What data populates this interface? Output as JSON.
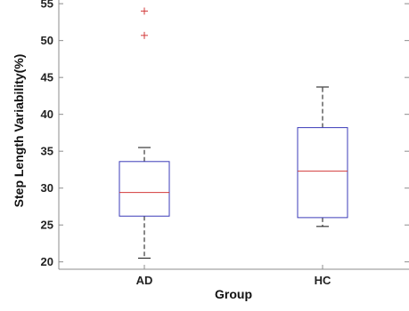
{
  "chart_data": {
    "type": "box",
    "categories": [
      "AD",
      "HC"
    ],
    "xlabel": "Group",
    "ylabel": "Step Length Variability(%)",
    "ylim": [
      19,
      55.5
    ],
    "yticks": [
      20,
      25,
      30,
      35,
      40,
      45,
      50,
      55
    ],
    "grid": false,
    "series": [
      {
        "category": "AD",
        "whisker_low": 20.5,
        "q1": 26.2,
        "median": 29.4,
        "q3": 33.6,
        "whisker_high": 35.5,
        "outliers": [
          50.7,
          54.0
        ]
      },
      {
        "category": "HC",
        "whisker_low": 24.8,
        "q1": 26.0,
        "median": 32.3,
        "q3": 38.2,
        "whisker_high": 43.7,
        "outliers": []
      }
    ],
    "colors": {
      "box": "#3b3bb8",
      "median": "#d23a3a",
      "whisker": "#111111",
      "outlier": "#d23a3a",
      "axis": "#8c8c8c"
    }
  }
}
